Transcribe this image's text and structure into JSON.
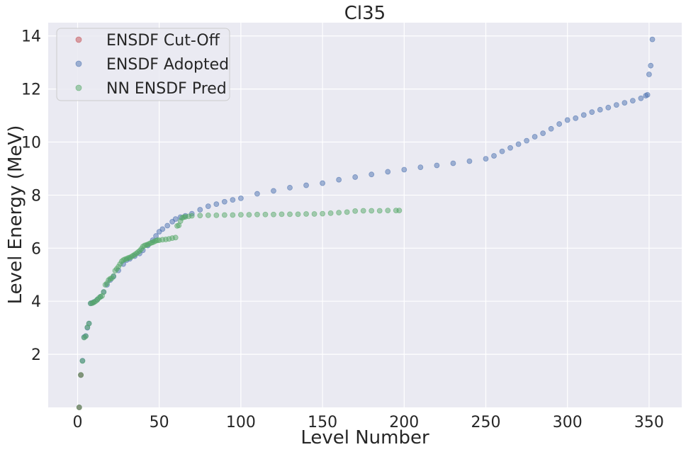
{
  "chart_data": {
    "type": "scatter",
    "title": "Cl35",
    "xlabel": "Level Number",
    "ylabel": "Level Energy (MeV)",
    "xlim": [
      -18,
      370
    ],
    "ylim": [
      0,
      14.5
    ],
    "xticks": [
      0,
      50,
      100,
      150,
      200,
      250,
      300,
      350
    ],
    "yticks": [
      2,
      4,
      6,
      8,
      10,
      12,
      14
    ],
    "grid": true,
    "background": "#eaeaf2",
    "legend": {
      "placement": "top-left"
    },
    "series": [
      {
        "name": "ENSDF Cut-Off",
        "color": "#c44e52",
        "points": [
          [
            1,
            0.0
          ],
          [
            2,
            1.22
          ]
        ]
      },
      {
        "name": "ENSDF Adopted",
        "color": "#4c72b0",
        "points": [
          [
            1,
            0.0
          ],
          [
            2,
            1.22
          ],
          [
            3,
            1.76
          ],
          [
            4,
            2.65
          ],
          [
            5,
            2.69
          ],
          [
            6,
            3.0
          ],
          [
            7,
            3.16
          ],
          [
            8,
            3.92
          ],
          [
            9,
            3.94
          ],
          [
            10,
            3.97
          ],
          [
            12,
            4.06
          ],
          [
            14,
            4.17
          ],
          [
            16,
            4.35
          ],
          [
            18,
            4.62
          ],
          [
            20,
            4.8
          ],
          [
            22,
            4.93
          ],
          [
            25,
            5.16
          ],
          [
            28,
            5.4
          ],
          [
            30,
            5.55
          ],
          [
            32,
            5.6
          ],
          [
            35,
            5.7
          ],
          [
            38,
            5.8
          ],
          [
            40,
            5.92
          ],
          [
            43,
            6.1
          ],
          [
            46,
            6.3
          ],
          [
            48,
            6.46
          ],
          [
            50,
            6.62
          ],
          [
            52,
            6.72
          ],
          [
            55,
            6.85
          ],
          [
            58,
            7.0
          ],
          [
            60,
            7.1
          ],
          [
            63,
            7.17
          ],
          [
            66,
            7.22
          ],
          [
            70,
            7.3
          ],
          [
            75,
            7.45
          ],
          [
            80,
            7.58
          ],
          [
            85,
            7.66
          ],
          [
            90,
            7.75
          ],
          [
            95,
            7.82
          ],
          [
            100,
            7.88
          ],
          [
            110,
            8.05
          ],
          [
            120,
            8.16
          ],
          [
            130,
            8.28
          ],
          [
            140,
            8.37
          ],
          [
            150,
            8.45
          ],
          [
            160,
            8.58
          ],
          [
            170,
            8.68
          ],
          [
            180,
            8.78
          ],
          [
            190,
            8.88
          ],
          [
            200,
            8.96
          ],
          [
            210,
            9.05
          ],
          [
            220,
            9.12
          ],
          [
            230,
            9.2
          ],
          [
            240,
            9.28
          ],
          [
            250,
            9.37
          ],
          [
            255,
            9.48
          ],
          [
            260,
            9.65
          ],
          [
            265,
            9.78
          ],
          [
            270,
            9.92
          ],
          [
            275,
            10.05
          ],
          [
            280,
            10.2
          ],
          [
            285,
            10.33
          ],
          [
            290,
            10.5
          ],
          [
            295,
            10.68
          ],
          [
            300,
            10.83
          ],
          [
            305,
            10.9
          ],
          [
            310,
            11.02
          ],
          [
            315,
            11.13
          ],
          [
            320,
            11.22
          ],
          [
            325,
            11.3
          ],
          [
            330,
            11.4
          ],
          [
            335,
            11.48
          ],
          [
            340,
            11.56
          ],
          [
            345,
            11.65
          ],
          [
            348,
            11.75
          ],
          [
            349,
            11.78
          ],
          [
            350,
            12.55
          ],
          [
            351,
            12.88
          ],
          [
            352,
            13.87
          ]
        ]
      },
      {
        "name": "NN ENSDF Pred",
        "color": "#55a868",
        "points": [
          [
            1,
            0.0
          ],
          [
            2,
            1.22
          ],
          [
            3,
            1.75
          ],
          [
            4,
            2.63
          ],
          [
            5,
            2.68
          ],
          [
            6,
            3.02
          ],
          [
            7,
            3.16
          ],
          [
            8,
            3.92
          ],
          [
            9,
            3.93
          ],
          [
            10,
            3.96
          ],
          [
            11,
            4.0
          ],
          [
            12,
            4.05
          ],
          [
            13,
            4.12
          ],
          [
            14,
            4.17
          ],
          [
            15,
            4.2
          ],
          [
            16,
            4.35
          ],
          [
            17,
            4.62
          ],
          [
            18,
            4.68
          ],
          [
            19,
            4.8
          ],
          [
            20,
            4.85
          ],
          [
            21,
            4.87
          ],
          [
            22,
            4.95
          ],
          [
            23,
            5.15
          ],
          [
            24,
            5.22
          ],
          [
            25,
            5.3
          ],
          [
            26,
            5.4
          ],
          [
            27,
            5.5
          ],
          [
            28,
            5.55
          ],
          [
            29,
            5.58
          ],
          [
            30,
            5.6
          ],
          [
            31,
            5.63
          ],
          [
            32,
            5.65
          ],
          [
            33,
            5.68
          ],
          [
            34,
            5.72
          ],
          [
            35,
            5.76
          ],
          [
            36,
            5.8
          ],
          [
            37,
            5.85
          ],
          [
            38,
            5.9
          ],
          [
            39,
            5.97
          ],
          [
            40,
            6.06
          ],
          [
            41,
            6.1
          ],
          [
            42,
            6.12
          ],
          [
            43,
            6.14
          ],
          [
            44,
            6.17
          ],
          [
            45,
            6.2
          ],
          [
            46,
            6.22
          ],
          [
            47,
            6.25
          ],
          [
            48,
            6.28
          ],
          [
            49,
            6.3
          ],
          [
            50,
            6.3
          ],
          [
            52,
            6.32
          ],
          [
            54,
            6.33
          ],
          [
            56,
            6.35
          ],
          [
            58,
            6.38
          ],
          [
            60,
            6.4
          ],
          [
            61,
            6.84
          ],
          [
            62,
            6.86
          ],
          [
            63,
            7.02
          ],
          [
            64,
            7.14
          ],
          [
            65,
            7.17
          ],
          [
            66,
            7.18
          ],
          [
            68,
            7.2
          ],
          [
            70,
            7.22
          ],
          [
            75,
            7.23
          ],
          [
            80,
            7.24
          ],
          [
            85,
            7.24
          ],
          [
            90,
            7.25
          ],
          [
            95,
            7.25
          ],
          [
            100,
            7.26
          ],
          [
            105,
            7.26
          ],
          [
            110,
            7.27
          ],
          [
            115,
            7.27
          ],
          [
            120,
            7.27
          ],
          [
            125,
            7.28
          ],
          [
            130,
            7.28
          ],
          [
            135,
            7.28
          ],
          [
            140,
            7.29
          ],
          [
            145,
            7.29
          ],
          [
            150,
            7.3
          ],
          [
            155,
            7.32
          ],
          [
            160,
            7.34
          ],
          [
            165,
            7.36
          ],
          [
            170,
            7.4
          ],
          [
            175,
            7.41
          ],
          [
            180,
            7.41
          ],
          [
            185,
            7.41
          ],
          [
            190,
            7.42
          ],
          [
            195,
            7.42
          ],
          [
            197,
            7.42
          ]
        ]
      }
    ]
  }
}
